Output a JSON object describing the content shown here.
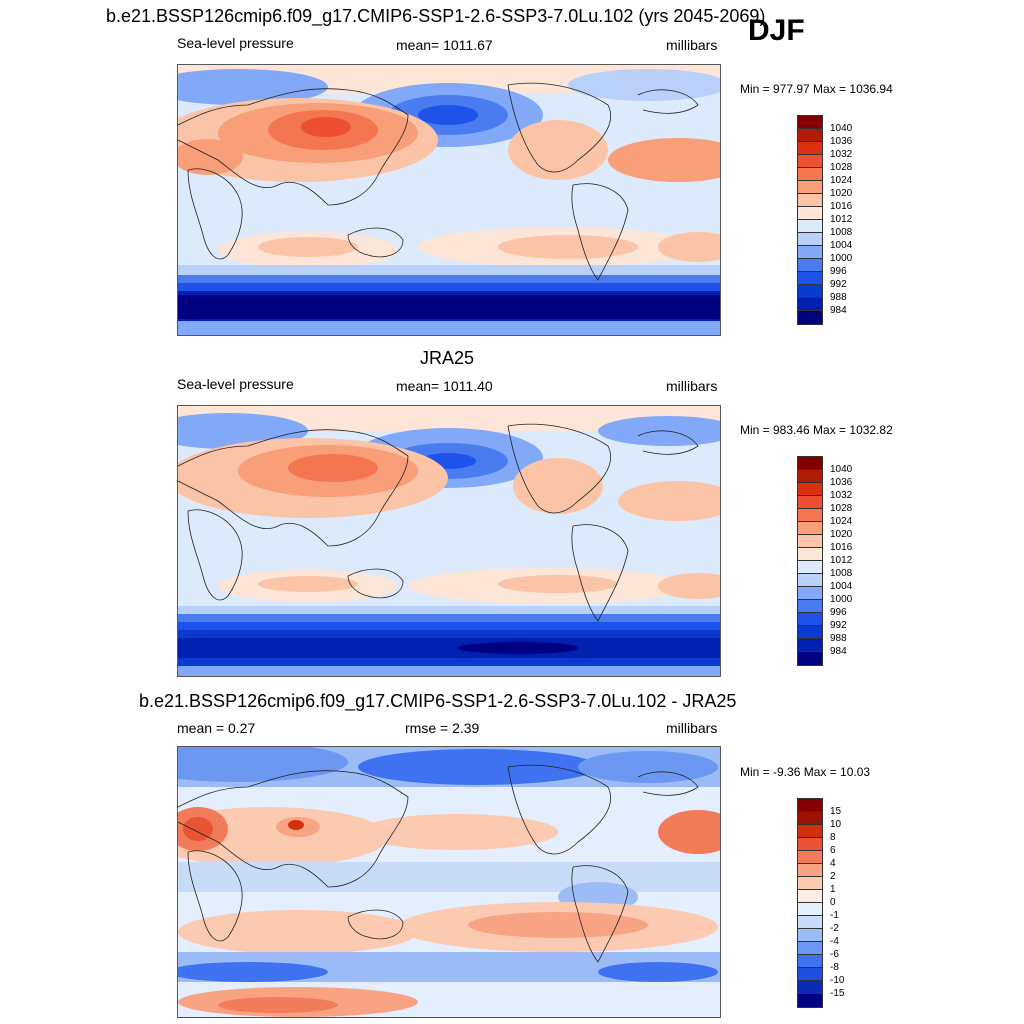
{
  "season": "DJF",
  "colors": {
    "full": [
      "#000080",
      "#0020b0",
      "#0a3ad0",
      "#1f52e8",
      "#4a7cf0",
      "#82a8f8",
      "#b8d0fa",
      "#dceafc",
      "#fde6d8",
      "#fbc4a6",
      "#f89e78",
      "#f47650",
      "#ec5030",
      "#dc3010",
      "#b01c08",
      "#840000"
    ],
    "diff": [
      "#000080",
      "#0a2ab8",
      "#1f4ee0",
      "#3f72f0",
      "#6c98f4",
      "#9cbcf8",
      "#c8dcfa",
      "#e4eefc",
      "#fdeee4",
      "#fccab0",
      "#f8a484",
      "#f27c5a",
      "#e85434",
      "#d0300e",
      "#9c1400",
      "#840000"
    ]
  },
  "charts": [
    {
      "title": "b.e21.BSSP126cmip6.f09_g17.CMIP6-SSP1-2.6-SSP3-7.0Lu.102 (yrs 2045-2069)",
      "left_label": "Sea-level pressure",
      "center_label": "mean= 1011.67",
      "right_label": "millibars",
      "minmax": "Min = 977.97 Max = 1036.94",
      "levels": [
        "1040",
        "1036",
        "1032",
        "1028",
        "1024",
        "1020",
        "1016",
        "1012",
        "1008",
        "1004",
        "1000",
        "996",
        "992",
        "988",
        "984"
      ]
    },
    {
      "title": "JRA25",
      "left_label": "Sea-level pressure",
      "center_label": "mean= 1011.40",
      "right_label": "millibars",
      "minmax": "Min = 983.46 Max = 1032.82",
      "levels": [
        "1040",
        "1036",
        "1032",
        "1028",
        "1024",
        "1020",
        "1016",
        "1012",
        "1008",
        "1004",
        "1000",
        "996",
        "992",
        "988",
        "984"
      ]
    },
    {
      "title": "b.e21.BSSP126cmip6.f09_g17.CMIP6-SSP1-2.6-SSP3-7.0Lu.102 - JRA25",
      "left_label": "mean =   0.27",
      "center_label": "rmse =   2.39",
      "right_label": "millibars",
      "minmax": "Min =  -9.36 Max =  10.03",
      "levels": [
        "15",
        "10",
        "8",
        "6",
        "4",
        "2",
        "1",
        "0",
        "-1",
        "-2",
        "-4",
        "-6",
        "-8",
        "-10",
        "-15"
      ]
    }
  ],
  "chart_data": [
    {
      "type": "heatmap",
      "title": "b.e21.BSSP126cmip6.f09_g17.CMIP6-SSP1-2.6-SSP3-7.0Lu.102 (yrs 2045-2069)",
      "variable": "Sea-level pressure",
      "units": "millibars",
      "mean": 1011.67,
      "min": 977.97,
      "max": 1036.94,
      "levels": [
        984,
        988,
        992,
        996,
        1000,
        1004,
        1008,
        1012,
        1016,
        1020,
        1024,
        1028,
        1032,
        1036,
        1040
      ]
    },
    {
      "type": "heatmap",
      "title": "JRA25",
      "variable": "Sea-level pressure",
      "units": "millibars",
      "mean": 1011.4,
      "min": 983.46,
      "max": 1032.82,
      "levels": [
        984,
        988,
        992,
        996,
        1000,
        1004,
        1008,
        1012,
        1016,
        1020,
        1024,
        1028,
        1032,
        1036,
        1040
      ]
    },
    {
      "type": "heatmap",
      "title": "b.e21.BSSP126cmip6.f09_g17.CMIP6-SSP1-2.6-SSP3-7.0Lu.102 - JRA25",
      "units": "millibars",
      "mean": 0.27,
      "rmse": 2.39,
      "min": -9.36,
      "max": 10.03,
      "levels": [
        -15,
        -10,
        -8,
        -6,
        -4,
        -2,
        -1,
        0,
        1,
        2,
        4,
        6,
        8,
        10,
        15
      ]
    }
  ]
}
